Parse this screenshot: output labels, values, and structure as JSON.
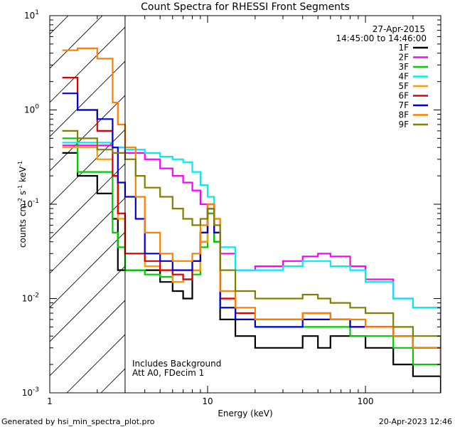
{
  "chart_data": {
    "type": "line",
    "title": "Count Spectra for RHESSI Front Segments",
    "xlabel": "Energy (keV)",
    "ylabel_parts": [
      "counts cm",
      "-2",
      " s",
      "-1",
      " keV",
      "-1"
    ],
    "x_scale": "log",
    "y_scale": "log",
    "xlim": [
      1,
      300
    ],
    "ylim": [
      0.001,
      10
    ],
    "x_ticks": [
      {
        "value": 1,
        "label": "1"
      },
      {
        "value": 10,
        "label": "10"
      },
      {
        "value": 100,
        "label": "100"
      }
    ],
    "y_ticks": [
      {
        "value": 0.001,
        "base": "10",
        "exp": "-3"
      },
      {
        "value": 0.01,
        "base": "10",
        "exp": "-2"
      },
      {
        "value": 0.1,
        "base": "10",
        "exp": "-1"
      },
      {
        "value": 1,
        "base": "10",
        "exp": "0"
      },
      {
        "value": 10,
        "base": "10",
        "exp": "1"
      }
    ],
    "date": "27-Apr-2015",
    "time_range": "14:45:00 to 14:46:00",
    "hatched_region_xmax": 3,
    "annotations": [
      "Includes Background",
      "Att A0, FDecim 1"
    ],
    "series": [
      {
        "name": "1F",
        "color": "#000000",
        "points": [
          [
            1.2,
            0.35
          ],
          [
            1.5,
            0.2
          ],
          [
            2.0,
            0.13
          ],
          [
            2.5,
            0.07
          ],
          [
            2.7,
            0.02
          ],
          [
            3.0,
            0.02
          ],
          [
            4,
            0.02
          ],
          [
            5,
            0.015
          ],
          [
            6,
            0.012
          ],
          [
            7,
            0.01
          ],
          [
            8,
            0.02
          ],
          [
            9,
            0.04
          ],
          [
            10,
            0.09
          ],
          [
            11,
            0.04
          ],
          [
            12,
            0.006
          ],
          [
            15,
            0.004
          ],
          [
            20,
            0.003
          ],
          [
            30,
            0.003
          ],
          [
            40,
            0.004
          ],
          [
            50,
            0.003
          ],
          [
            60,
            0.004
          ],
          [
            80,
            0.004
          ],
          [
            100,
            0.003
          ],
          [
            150,
            0.002
          ],
          [
            200,
            0.0015
          ],
          [
            300,
            0.001
          ]
        ]
      },
      {
        "name": "2F",
        "color": "#ff00ff",
        "points": [
          [
            1.2,
            0.42
          ],
          [
            2.0,
            0.42
          ],
          [
            2.5,
            0.4
          ],
          [
            3.0,
            0.35
          ],
          [
            4,
            0.3
          ],
          [
            5,
            0.24
          ],
          [
            6,
            0.2
          ],
          [
            7,
            0.17
          ],
          [
            8,
            0.14
          ],
          [
            9,
            0.1
          ],
          [
            10,
            0.08
          ],
          [
            11,
            0.05
          ],
          [
            12,
            0.03
          ],
          [
            15,
            0.02
          ],
          [
            20,
            0.022
          ],
          [
            30,
            0.025
          ],
          [
            40,
            0.028
          ],
          [
            50,
            0.03
          ],
          [
            60,
            0.028
          ],
          [
            80,
            0.022
          ],
          [
            100,
            0.016
          ],
          [
            150,
            0.01
          ],
          [
            200,
            0.008
          ],
          [
            300,
            0.005
          ]
        ]
      },
      {
        "name": "3F",
        "color": "#00cc00",
        "points": [
          [
            1.2,
            0.5
          ],
          [
            1.5,
            0.22
          ],
          [
            2.0,
            0.22
          ],
          [
            2.5,
            0.05
          ],
          [
            2.7,
            0.035
          ],
          [
            3.0,
            0.02
          ],
          [
            4,
            0.018
          ],
          [
            5,
            0.017
          ],
          [
            6,
            0.015
          ],
          [
            7,
            0.016
          ],
          [
            8,
            0.018
          ],
          [
            9,
            0.035
          ],
          [
            10,
            0.08
          ],
          [
            11,
            0.04
          ],
          [
            12,
            0.008
          ],
          [
            15,
            0.006
          ],
          [
            20,
            0.005
          ],
          [
            30,
            0.005
          ],
          [
            40,
            0.005
          ],
          [
            50,
            0.005
          ],
          [
            60,
            0.005
          ],
          [
            80,
            0.004
          ],
          [
            100,
            0.004
          ],
          [
            150,
            0.003
          ],
          [
            200,
            0.002
          ],
          [
            300,
            0.0015
          ]
        ]
      },
      {
        "name": "4F",
        "color": "#00eeee",
        "points": [
          [
            1.2,
            0.45
          ],
          [
            2.0,
            0.45
          ],
          [
            2.5,
            0.4
          ],
          [
            3.0,
            0.38
          ],
          [
            4,
            0.35
          ],
          [
            5,
            0.32
          ],
          [
            6,
            0.3
          ],
          [
            7,
            0.28
          ],
          [
            8,
            0.22
          ],
          [
            9,
            0.16
          ],
          [
            10,
            0.12
          ],
          [
            11,
            0.07
          ],
          [
            12,
            0.035
          ],
          [
            15,
            0.02
          ],
          [
            20,
            0.02
          ],
          [
            30,
            0.022
          ],
          [
            40,
            0.025
          ],
          [
            50,
            0.025
          ],
          [
            60,
            0.022
          ],
          [
            80,
            0.02
          ],
          [
            100,
            0.015
          ],
          [
            150,
            0.01
          ],
          [
            200,
            0.008
          ],
          [
            300,
            0.006
          ]
        ]
      },
      {
        "name": "5F",
        "color": "#ff9900",
        "points": [
          [
            1.2,
            0.4
          ],
          [
            2.0,
            0.3
          ],
          [
            2.5,
            0.2
          ],
          [
            2.7,
            0.07
          ],
          [
            3.0,
            0.03
          ],
          [
            4,
            0.022
          ],
          [
            5,
            0.02
          ],
          [
            6,
            0.015
          ],
          [
            7,
            0.016
          ],
          [
            8,
            0.02
          ],
          [
            9,
            0.04
          ],
          [
            10,
            0.1
          ],
          [
            11,
            0.05
          ],
          [
            12,
            0.01
          ],
          [
            15,
            0.007
          ],
          [
            20,
            0.006
          ],
          [
            30,
            0.006
          ],
          [
            40,
            0.006
          ],
          [
            50,
            0.006
          ],
          [
            60,
            0.006
          ],
          [
            80,
            0.005
          ],
          [
            100,
            0.005
          ],
          [
            150,
            0.004
          ],
          [
            200,
            0.003
          ],
          [
            300,
            0.002
          ]
        ]
      },
      {
        "name": "6F",
        "color": "#dd0000",
        "points": [
          [
            1.2,
            2.2
          ],
          [
            1.5,
            1.0
          ],
          [
            2.0,
            0.6
          ],
          [
            2.5,
            0.2
          ],
          [
            2.7,
            0.08
          ],
          [
            3.0,
            0.03
          ],
          [
            4,
            0.025
          ],
          [
            5,
            0.02
          ],
          [
            6,
            0.018
          ],
          [
            7,
            0.016
          ],
          [
            8,
            0.025
          ],
          [
            9,
            0.05
          ],
          [
            10,
            0.1
          ],
          [
            11,
            0.05
          ],
          [
            12,
            0.01
          ],
          [
            15,
            0.007
          ],
          [
            20,
            0.006
          ],
          [
            30,
            0.006
          ],
          [
            40,
            0.007
          ],
          [
            50,
            0.007
          ],
          [
            60,
            0.006
          ],
          [
            80,
            0.005
          ],
          [
            100,
            0.005
          ],
          [
            150,
            0.004
          ],
          [
            200,
            0.003
          ],
          [
            300,
            0.002
          ]
        ]
      },
      {
        "name": "7F",
        "color": "#0000dd",
        "points": [
          [
            1.2,
            1.5
          ],
          [
            1.5,
            1.0
          ],
          [
            2.0,
            0.8
          ],
          [
            2.5,
            0.4
          ],
          [
            2.7,
            0.17
          ],
          [
            3.0,
            0.12
          ],
          [
            3.5,
            0.07
          ],
          [
            4,
            0.03
          ],
          [
            5,
            0.025
          ],
          [
            6,
            0.02
          ],
          [
            7,
            0.02
          ],
          [
            8,
            0.025
          ],
          [
            9,
            0.05
          ],
          [
            10,
            0.09
          ],
          [
            11,
            0.05
          ],
          [
            12,
            0.008
          ],
          [
            15,
            0.006
          ],
          [
            20,
            0.005
          ],
          [
            30,
            0.005
          ],
          [
            40,
            0.006
          ],
          [
            50,
            0.006
          ],
          [
            60,
            0.006
          ],
          [
            80,
            0.005
          ],
          [
            100,
            0.005
          ],
          [
            150,
            0.004
          ],
          [
            200,
            0.003
          ],
          [
            300,
            0.002
          ]
        ]
      },
      {
        "name": "8F",
        "color": "#ff8000",
        "points": [
          [
            1.2,
            4.3
          ],
          [
            1.5,
            4.5
          ],
          [
            2.0,
            3.5
          ],
          [
            2.5,
            1.2
          ],
          [
            2.7,
            0.7
          ],
          [
            3.0,
            0.4
          ],
          [
            3.5,
            0.12
          ],
          [
            4,
            0.05
          ],
          [
            5,
            0.03
          ],
          [
            6,
            0.025
          ],
          [
            7,
            0.025
          ],
          [
            8,
            0.03
          ],
          [
            9,
            0.06
          ],
          [
            10,
            0.1
          ],
          [
            11,
            0.07
          ],
          [
            12,
            0.012
          ],
          [
            15,
            0.008
          ],
          [
            20,
            0.006
          ],
          [
            30,
            0.006
          ],
          [
            40,
            0.007
          ],
          [
            50,
            0.007
          ],
          [
            60,
            0.006
          ],
          [
            80,
            0.006
          ],
          [
            100,
            0.005
          ],
          [
            150,
            0.004
          ],
          [
            200,
            0.003
          ],
          [
            300,
            0.002
          ]
        ]
      },
      {
        "name": "9F",
        "color": "#808000",
        "points": [
          [
            1.2,
            0.6
          ],
          [
            1.5,
            0.5
          ],
          [
            2.0,
            0.38
          ],
          [
            2.5,
            0.35
          ],
          [
            3.0,
            0.3
          ],
          [
            3.5,
            0.2
          ],
          [
            4,
            0.15
          ],
          [
            5,
            0.12
          ],
          [
            6,
            0.09
          ],
          [
            7,
            0.07
          ],
          [
            8,
            0.06
          ],
          [
            9,
            0.07
          ],
          [
            10,
            0.09
          ],
          [
            11,
            0.06
          ],
          [
            12,
            0.02
          ],
          [
            15,
            0.012
          ],
          [
            20,
            0.01
          ],
          [
            30,
            0.01
          ],
          [
            40,
            0.011
          ],
          [
            50,
            0.01
          ],
          [
            60,
            0.009
          ],
          [
            80,
            0.008
          ],
          [
            100,
            0.007
          ],
          [
            150,
            0.005
          ],
          [
            200,
            0.004
          ],
          [
            300,
            0.003
          ]
        ]
      }
    ]
  },
  "footer": {
    "left": "Generated by hsi_min_spectra_plot.pro",
    "right": "20-Apr-2023 12:46"
  }
}
